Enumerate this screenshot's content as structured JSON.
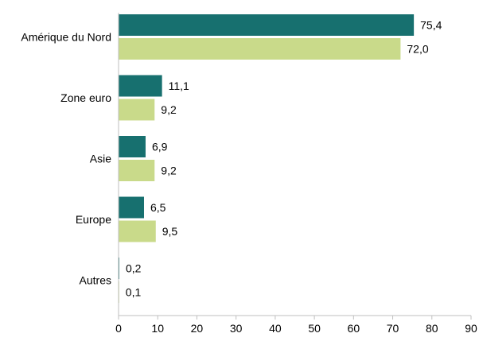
{
  "chart_data": {
    "type": "bar",
    "orientation": "horizontal",
    "categories": [
      "Amérique du Nord",
      "Zone euro",
      "Asie",
      "Europe",
      "Autres"
    ],
    "series": [
      {
        "values": [
          75.4,
          11.1,
          6.9,
          6.5,
          0.2
        ],
        "color": "#17706f"
      },
      {
        "values": [
          72.0,
          9.2,
          9.2,
          9.5,
          0.1
        ],
        "color": "#c9da8a"
      }
    ],
    "value_labels": [
      [
        "75,4",
        "11,1",
        "6,9",
        "6,5",
        "0,2"
      ],
      [
        "72,0",
        "9,2",
        "9,2",
        "9,5",
        "0,1"
      ]
    ],
    "xlim": [
      0,
      90
    ],
    "x_ticks": [
      "0",
      "10",
      "20",
      "30",
      "40",
      "50",
      "60",
      "70",
      "80",
      "90"
    ],
    "grid": false,
    "legend": "none"
  }
}
